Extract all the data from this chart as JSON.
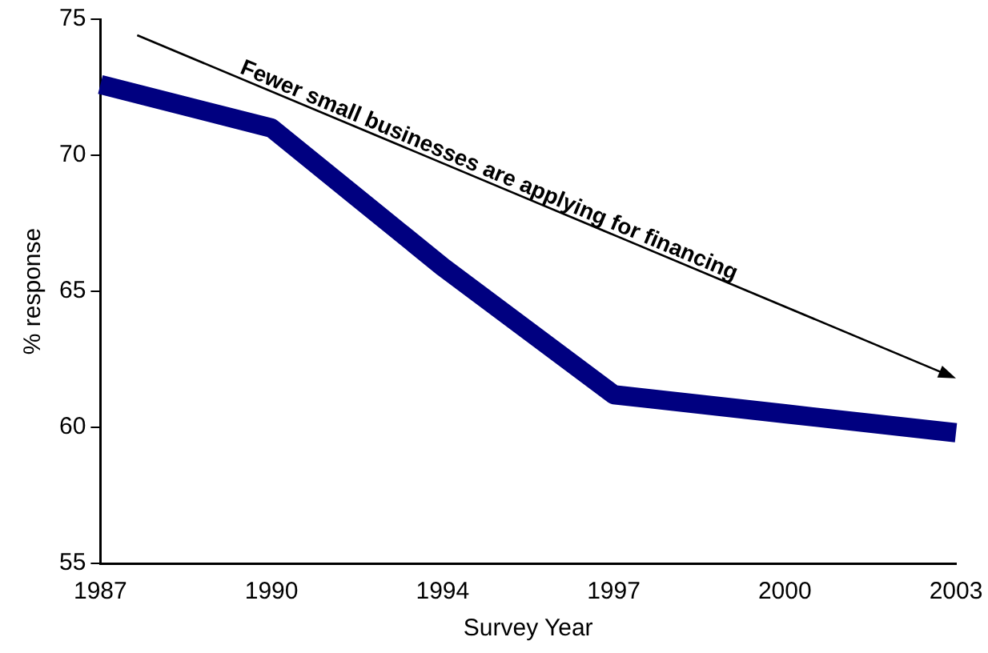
{
  "chart_data": {
    "type": "line",
    "xlabel": "Survey Year",
    "ylabel": "% response",
    "categories": [
      "1987",
      "1990",
      "1994",
      "1997",
      "2000",
      "2003"
    ],
    "series": [
      {
        "color": "#000080",
        "values": [
          72.6,
          71.0,
          65.9,
          61.2,
          60.5,
          59.8
        ]
      }
    ],
    "ylim": [
      55,
      75
    ],
    "yticks": [
      55,
      60,
      65,
      70,
      75
    ],
    "grid": false,
    "legend": false,
    "marker": "none",
    "line_style": "solid",
    "annotations": [
      "Fewer small businesses are applying for financing"
    ]
  }
}
